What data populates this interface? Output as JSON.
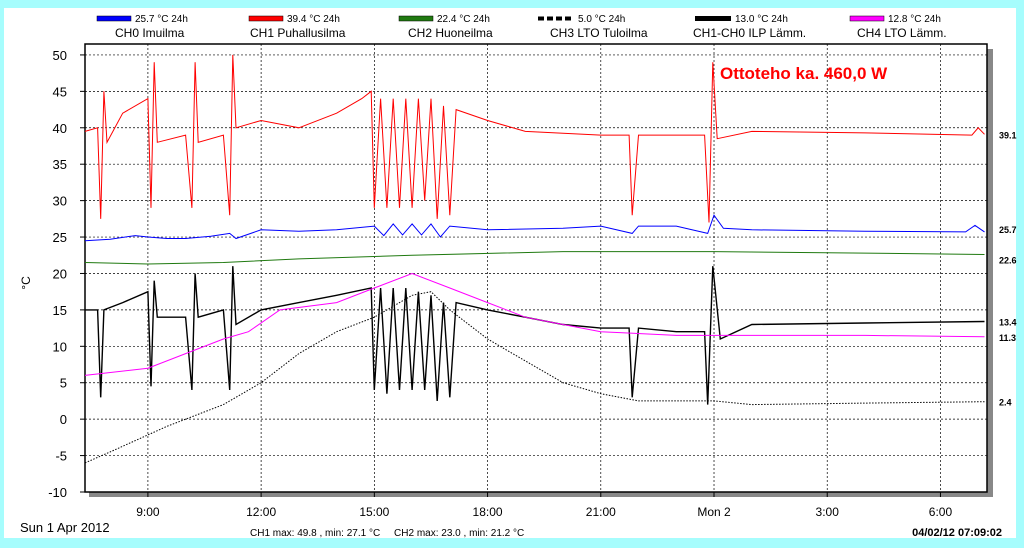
{
  "chart_data": {
    "type": "line",
    "annotation": "Ottoteho ka. 460,0 W",
    "ylabel": "°C",
    "ylim": [
      -10,
      51.5
    ],
    "yticks": [
      -10,
      -5,
      0,
      5,
      10,
      15,
      20,
      25,
      30,
      35,
      40,
      45,
      50
    ],
    "xlim": [
      "Sun 07:20",
      "Mon 07:14"
    ],
    "xticks": [
      {
        "t": "Sun 09:00",
        "label": "9:00"
      },
      {
        "t": "Sun 12:00",
        "label": "12:00"
      },
      {
        "t": "Sun 15:00",
        "label": "15:00"
      },
      {
        "t": "Sun 18:00",
        "label": "18:00"
      },
      {
        "t": "Sun 21:00",
        "label": "21:00"
      },
      {
        "t": "Mon 00:00",
        "label": "Mon 2"
      },
      {
        "t": "Mon 03:00",
        "label": "3:00"
      },
      {
        "t": "Mon 06:00",
        "label": "6:00"
      }
    ],
    "grid": true,
    "date_label": "Sun 1 Apr 2012",
    "stats": "CH1 max: 49.8 , min: 27.1 °C     CH2 max: 23.0 , min: 21.2 °C",
    "timestamp": "04/02/12 07:09:02",
    "legend_placement": "top",
    "series": [
      {
        "name": "CH0 Imuilma",
        "legend_value": "25.7 °C 24h",
        "end_label": "25.7",
        "color": "#0000ff",
        "style": "box",
        "points": [
          [
            "Sun 07:20",
            24.5
          ],
          [
            "Sun 08:00",
            24.7
          ],
          [
            "Sun 08:40",
            25.2
          ],
          [
            "Sun 09:00",
            25
          ],
          [
            "Sun 09:30",
            24.8
          ],
          [
            "Sun 10:00",
            24.8
          ],
          [
            "Sun 10:40",
            25.1
          ],
          [
            "Sun 11:10",
            25.5
          ],
          [
            "Sun 11:20",
            24.8
          ],
          [
            "Sun 12:00",
            26
          ],
          [
            "Sun 13:00",
            25.8
          ],
          [
            "Sun 14:00",
            26
          ],
          [
            "Sun 15:00",
            26.5
          ],
          [
            "Sun 15:15",
            25.2
          ],
          [
            "Sun 15:30",
            26.8
          ],
          [
            "Sun 15:45",
            25.3
          ],
          [
            "Sun 16:00",
            26.8
          ],
          [
            "Sun 16:15",
            25.3
          ],
          [
            "Sun 16:30",
            26.8
          ],
          [
            "Sun 16:45",
            25
          ],
          [
            "Sun 17:00",
            26.5
          ],
          [
            "Sun 18:00",
            26
          ],
          [
            "Sun 20:00",
            26.2
          ],
          [
            "Sun 21:00",
            26.5
          ],
          [
            "Sun 21:50",
            25.5
          ],
          [
            "Sun 22:00",
            26.5
          ],
          [
            "Sun 23:00",
            26.5
          ],
          [
            "Sun 23:50",
            25.5
          ],
          [
            "Mon 00:00",
            28
          ],
          [
            "Mon 00:15",
            26.2
          ],
          [
            "Mon 01:00",
            26
          ],
          [
            "Mon 04:00",
            25.8
          ],
          [
            "Mon 06:40",
            25.7
          ],
          [
            "Mon 06:55",
            26.6
          ],
          [
            "Mon 07:10",
            25.7
          ]
        ]
      },
      {
        "name": "CH1 Puhallusilma",
        "legend_value": "39.4 °C 24h",
        "end_label": "39.1",
        "color": "#ff0000",
        "style": "box",
        "points": [
          [
            "Sun 07:20",
            39.5
          ],
          [
            "Sun 07:40",
            40
          ],
          [
            "Sun 07:45",
            27.5
          ],
          [
            "Sun 07:50",
            45
          ],
          [
            "Sun 07:55",
            38
          ],
          [
            "Sun 08:20",
            42
          ],
          [
            "Sun 09:00",
            44
          ],
          [
            "Sun 09:05",
            29
          ],
          [
            "Sun 09:10",
            49
          ],
          [
            "Sun 09:15",
            38
          ],
          [
            "Sun 10:00",
            39
          ],
          [
            "Sun 10:10",
            29
          ],
          [
            "Sun 10:15",
            49
          ],
          [
            "Sun 10:20",
            38
          ],
          [
            "Sun 11:00",
            39
          ],
          [
            "Sun 11:10",
            28
          ],
          [
            "Sun 11:15",
            50
          ],
          [
            "Sun 11:20",
            40
          ],
          [
            "Sun 12:00",
            41
          ],
          [
            "Sun 13:00",
            40
          ],
          [
            "Sun 14:00",
            42
          ],
          [
            "Sun 14:40",
            44
          ],
          [
            "Sun 14:55",
            45
          ],
          [
            "Sun 15:00",
            29
          ],
          [
            "Sun 15:10",
            44
          ],
          [
            "Sun 15:20",
            29
          ],
          [
            "Sun 15:30",
            44
          ],
          [
            "Sun 15:40",
            29
          ],
          [
            "Sun 15:50",
            44
          ],
          [
            "Sun 16:00",
            29
          ],
          [
            "Sun 16:10",
            44
          ],
          [
            "Sun 16:20",
            30
          ],
          [
            "Sun 16:30",
            44
          ],
          [
            "Sun 16:40",
            27.5
          ],
          [
            "Sun 16:50",
            43
          ],
          [
            "Sun 17:00",
            28
          ],
          [
            "Sun 17:10",
            42.5
          ],
          [
            "Sun 18:00",
            41
          ],
          [
            "Sun 19:00",
            39.5
          ],
          [
            "Sun 21:00",
            39
          ],
          [
            "Sun 21:45",
            39
          ],
          [
            "Sun 21:50",
            28
          ],
          [
            "Sun 22:00",
            39
          ],
          [
            "Sun 23:00",
            39
          ],
          [
            "Sun 23:45",
            39
          ],
          [
            "Sun 23:52",
            27
          ],
          [
            "Sun 23:58",
            49
          ],
          [
            "Mon 00:05",
            38.5
          ],
          [
            "Mon 01:00",
            39.5
          ],
          [
            "Mon 04:00",
            39.3
          ],
          [
            "Mon 06:50",
            39
          ],
          [
            "Mon 07:00",
            40
          ],
          [
            "Mon 07:10",
            39.1
          ]
        ]
      },
      {
        "name": "CH2 Huoneilma",
        "legend_value": "22.4 °C 24h",
        "end_label": "22.6",
        "color": "#207a10",
        "style": "box",
        "points": [
          [
            "Sun 07:20",
            21.5
          ],
          [
            "Sun 09:00",
            21.3
          ],
          [
            "Sun 11:00",
            21.5
          ],
          [
            "Sun 13:00",
            22
          ],
          [
            "Sun 16:00",
            22.5
          ],
          [
            "Sun 20:00",
            23
          ],
          [
            "Mon 00:00",
            23
          ],
          [
            "Mon 04:00",
            22.8
          ],
          [
            "Mon 07:10",
            22.6
          ]
        ]
      },
      {
        "name": "CH3 LTO Tuloilma",
        "legend_value": "5.0 °C 24h",
        "end_label": "2.4",
        "color": "#000000",
        "style": "dashed",
        "points": [
          [
            "Sun 07:20",
            -6
          ],
          [
            "Sun 08:00",
            -4.5
          ],
          [
            "Sun 09:30",
            -1
          ],
          [
            "Sun 11:00",
            2
          ],
          [
            "Sun 12:00",
            5
          ],
          [
            "Sun 13:00",
            9
          ],
          [
            "Sun 14:00",
            12
          ],
          [
            "Sun 15:00",
            14
          ],
          [
            "Sun 16:00",
            17
          ],
          [
            "Sun 16:30",
            17.5
          ],
          [
            "Sun 17:00",
            15
          ],
          [
            "Sun 18:00",
            11
          ],
          [
            "Sun 19:00",
            8
          ],
          [
            "Sun 20:00",
            5
          ],
          [
            "Sun 21:00",
            3.5
          ],
          [
            "Sun 22:00",
            2.5
          ],
          [
            "Mon 00:00",
            2.5
          ],
          [
            "Mon 01:00",
            2
          ],
          [
            "Mon 04:00",
            2.2
          ],
          [
            "Mon 07:10",
            2.4
          ]
        ]
      },
      {
        "name": "CH1-CH0 ILP Lämm.",
        "legend_value": "13.0 °C 24h",
        "end_label": "13.4",
        "color": "#000000",
        "style": "thick",
        "points": [
          [
            "Sun 07:20",
            15
          ],
          [
            "Sun 07:40",
            15
          ],
          [
            "Sun 07:45",
            3
          ],
          [
            "Sun 07:50",
            15
          ],
          [
            "Sun 08:20",
            16
          ],
          [
            "Sun 09:00",
            17.5
          ],
          [
            "Sun 09:05",
            4.5
          ],
          [
            "Sun 09:10",
            19
          ],
          [
            "Sun 09:15",
            14
          ],
          [
            "Sun 10:00",
            14
          ],
          [
            "Sun 10:10",
            4
          ],
          [
            "Sun 10:15",
            20
          ],
          [
            "Sun 10:20",
            14
          ],
          [
            "Sun 11:00",
            15
          ],
          [
            "Sun 11:10",
            4
          ],
          [
            "Sun 11:15",
            21
          ],
          [
            "Sun 11:20",
            13
          ],
          [
            "Sun 12:00",
            15
          ],
          [
            "Sun 13:00",
            16
          ],
          [
            "Sun 14:00",
            17
          ],
          [
            "Sun 14:55",
            18
          ],
          [
            "Sun 15:00",
            4
          ],
          [
            "Sun 15:10",
            18
          ],
          [
            "Sun 15:20",
            3.5
          ],
          [
            "Sun 15:30",
            18
          ],
          [
            "Sun 15:40",
            4
          ],
          [
            "Sun 15:50",
            18
          ],
          [
            "Sun 16:00",
            4
          ],
          [
            "Sun 16:10",
            17.5
          ],
          [
            "Sun 16:20",
            4
          ],
          [
            "Sun 16:30",
            17
          ],
          [
            "Sun 16:40",
            2.5
          ],
          [
            "Sun 16:50",
            16
          ],
          [
            "Sun 17:00",
            3
          ],
          [
            "Sun 17:10",
            16
          ],
          [
            "Sun 18:00",
            15
          ],
          [
            "Sun 19:00",
            14
          ],
          [
            "Sun 20:00",
            13
          ],
          [
            "Sun 21:00",
            12.5
          ],
          [
            "Sun 21:45",
            12.5
          ],
          [
            "Sun 21:50",
            3
          ],
          [
            "Sun 22:00",
            12.5
          ],
          [
            "Sun 23:00",
            12
          ],
          [
            "Sun 23:45",
            12
          ],
          [
            "Sun 23:50",
            2
          ],
          [
            "Sun 23:58",
            21
          ],
          [
            "Mon 00:10",
            11
          ],
          [
            "Mon 01:00",
            13
          ],
          [
            "Mon 04:00",
            13.2
          ],
          [
            "Mon 07:10",
            13.4
          ]
        ]
      },
      {
        "name": "CH4 LTO Lämm.",
        "legend_value": "12.8 °C 24h",
        "end_label": "11.3",
        "color": "#ff00ff",
        "style": "box",
        "points": [
          [
            "Sun 07:20",
            6
          ],
          [
            "Sun 09:00",
            7
          ],
          [
            "Sun 10:00",
            9
          ],
          [
            "Sun 11:00",
            11
          ],
          [
            "Sun 11:40",
            12
          ],
          [
            "Sun 12:30",
            15
          ],
          [
            "Sun 14:00",
            16
          ],
          [
            "Sun 15:00",
            18
          ],
          [
            "Sun 16:00",
            20
          ],
          [
            "Sun 17:00",
            18
          ],
          [
            "Sun 18:00",
            16
          ],
          [
            "Sun 19:00",
            14
          ],
          [
            "Sun 20:00",
            13
          ],
          [
            "Sun 21:00",
            12
          ],
          [
            "Sun 23:00",
            11.5
          ],
          [
            "Mon 04:00",
            11.5
          ],
          [
            "Mon 07:10",
            11.3
          ]
        ]
      }
    ]
  }
}
